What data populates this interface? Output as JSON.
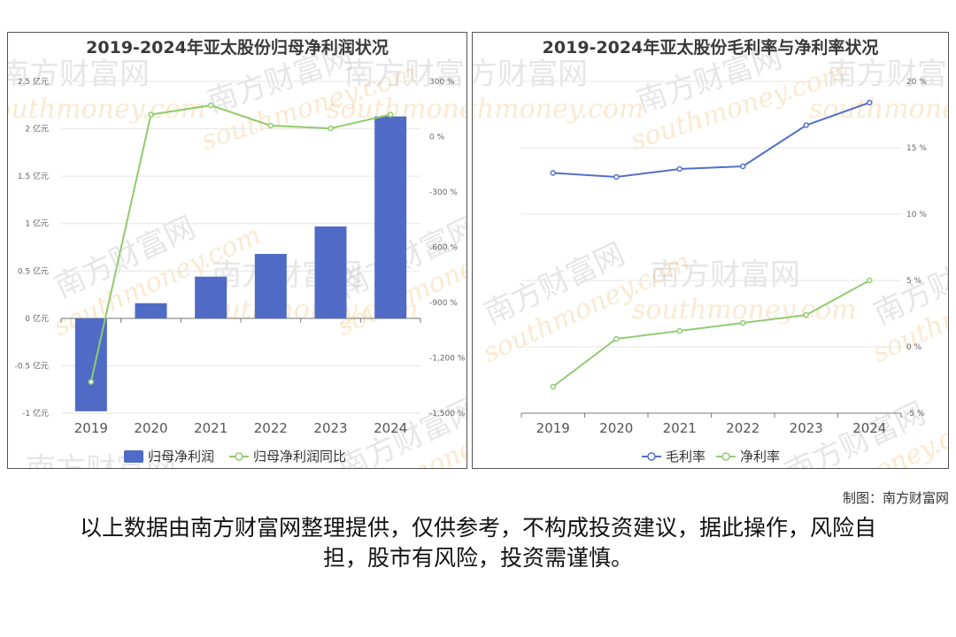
{
  "chart_data": [
    {
      "type": "bar+line",
      "title": "2019-2024年亚太股份归母净利润状况",
      "categories": [
        "2019",
        "2020",
        "2021",
        "2022",
        "2023",
        "2024"
      ],
      "series": [
        {
          "name": "归母净利润",
          "type": "bar",
          "axis": "left",
          "values": [
            -0.98,
            0.16,
            0.44,
            0.68,
            0.97,
            2.13
          ],
          "color": "#4f6bc6"
        },
        {
          "name": "归母净利润同比",
          "type": "line",
          "axis": "right",
          "values": [
            -1330,
            120,
            170,
            60,
            45,
            120
          ],
          "color": "#8fcc6b"
        }
      ],
      "y_left": {
        "ticks": [
          "2.5 亿元",
          "2 亿元",
          "1.5 亿元",
          "1 亿元",
          "0.5 亿元",
          "0 亿元",
          "-0.5 亿元",
          "-1 亿元"
        ],
        "range": [
          -1,
          2.5
        ]
      },
      "y_right": {
        "ticks": [
          "300 %",
          "0 %",
          "-300 %",
          "-600 %",
          "-900 %",
          "-1,200 %",
          "-1,500 %"
        ],
        "range": [
          -1500,
          300
        ]
      },
      "legend": "bottom"
    },
    {
      "type": "line",
      "title": "2019-2024年亚太股份毛利率与净利率状况",
      "categories": [
        "2019",
        "2020",
        "2021",
        "2022",
        "2023",
        "2024"
      ],
      "series": [
        {
          "name": "毛利率",
          "values": [
            13.1,
            12.8,
            13.4,
            13.6,
            16.7,
            18.4
          ],
          "color": "#5470c6"
        },
        {
          "name": "净利率",
          "values": [
            -3.0,
            0.6,
            1.2,
            1.8,
            2.4,
            5.0
          ],
          "color": "#91cc75"
        }
      ],
      "y_right": {
        "ticks": [
          "20 %",
          "15 %",
          "10 %",
          "5 %",
          "0 %",
          "-5 %"
        ],
        "range": [
          -5,
          20
        ]
      },
      "legend": "bottom"
    }
  ],
  "watermark": {
    "cn": "南方财富网",
    "en": "southmoney.com"
  },
  "credit": "制图：南方财富网",
  "disclaimer": "以上数据由南方财富网整理提供，仅供参考，不构成投资建议，据此操作，风险自担，股市有风险，投资需谨慎。"
}
